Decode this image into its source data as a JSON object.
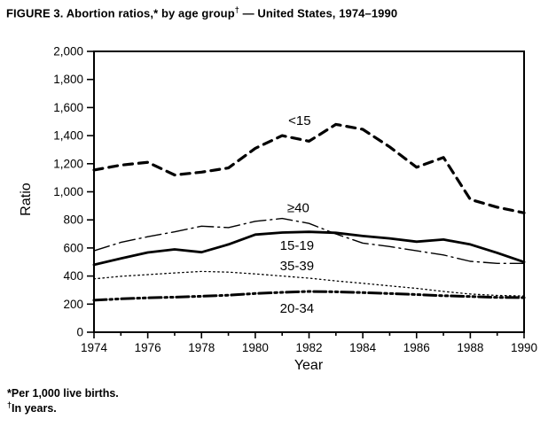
{
  "figure": {
    "title_prefix": "FIGURE 3. Abortion ratios,* by age group",
    "title_sup": "†",
    "title_suffix": " — United States, 1974–1990",
    "footnote_1": "*Per 1,000 live births.",
    "footnote_2_sup": "†",
    "footnote_2_text": "In years."
  },
  "chart_data": {
    "type": "line",
    "title": "FIGURE 3. Abortion ratios,* by age group† — United States, 1974–1990",
    "xlabel": "Year",
    "ylabel": "Ratio",
    "xlim": [
      1974,
      1990
    ],
    "ylim": [
      0,
      2000
    ],
    "grid": false,
    "legend": "inline-labels",
    "x_major_tick_step": 2,
    "x_minor_tick_step": 1,
    "x_tick_labels": [
      "1974",
      "1976",
      "1978",
      "1980",
      "1982",
      "1984",
      "1986",
      "1988",
      "1990"
    ],
    "y_major_ticks": [
      0,
      200,
      400,
      600,
      800,
      1000,
      1200,
      1400,
      1600,
      1800,
      2000
    ],
    "y_tick_labels": [
      "0",
      "200",
      "400",
      "600",
      "800",
      "1,000",
      "1,200",
      "1,400",
      "1,600",
      "1,800",
      "2,000"
    ],
    "x": [
      1974,
      1975,
      1976,
      1977,
      1978,
      1979,
      1980,
      1981,
      1982,
      1983,
      1984,
      1985,
      1986,
      1987,
      1988,
      1989,
      1990
    ],
    "series": [
      {
        "id": "under-15",
        "name": "<15",
        "style": "dashed-bold",
        "values": [
          1155,
          1190,
          1210,
          1120,
          1140,
          1170,
          1310,
          1400,
          1360,
          1480,
          1445,
          1320,
          1175,
          1245,
          945,
          890,
          850
        ],
        "label": {
          "x": 1981.65,
          "y": 1508
        }
      },
      {
        "id": "40-and-over",
        "name": "≥40",
        "style": "dash-dot-thin",
        "values": [
          580,
          640,
          680,
          715,
          755,
          745,
          790,
          810,
          775,
          700,
          635,
          610,
          580,
          550,
          505,
          490,
          490
        ],
        "label": {
          "x": 1981.6,
          "y": 885
        }
      },
      {
        "id": "15-19",
        "name": "15-19",
        "style": "solid-bold",
        "values": [
          480,
          525,
          568,
          590,
          570,
          625,
          695,
          710,
          715,
          708,
          685,
          668,
          645,
          660,
          625,
          565,
          500
        ],
        "label": {
          "x": 1981.55,
          "y": 618
        }
      },
      {
        "id": "35-39",
        "name": "35-39",
        "style": "dotted-thin",
        "values": [
          380,
          398,
          410,
          422,
          433,
          428,
          415,
          400,
          385,
          365,
          348,
          330,
          312,
          290,
          272,
          262,
          258
        ],
        "label": {
          "x": 1981.55,
          "y": 473
        }
      },
      {
        "id": "20-34",
        "name": "20-34",
        "style": "dash-dot-dot-bold",
        "values": [
          228,
          238,
          245,
          250,
          256,
          264,
          276,
          284,
          290,
          288,
          282,
          276,
          268,
          260,
          254,
          248,
          246
        ],
        "label": {
          "x": 1981.55,
          "y": 170
        }
      }
    ],
    "colors": {
      "ink": "#000000",
      "background": "#ffffff"
    }
  }
}
